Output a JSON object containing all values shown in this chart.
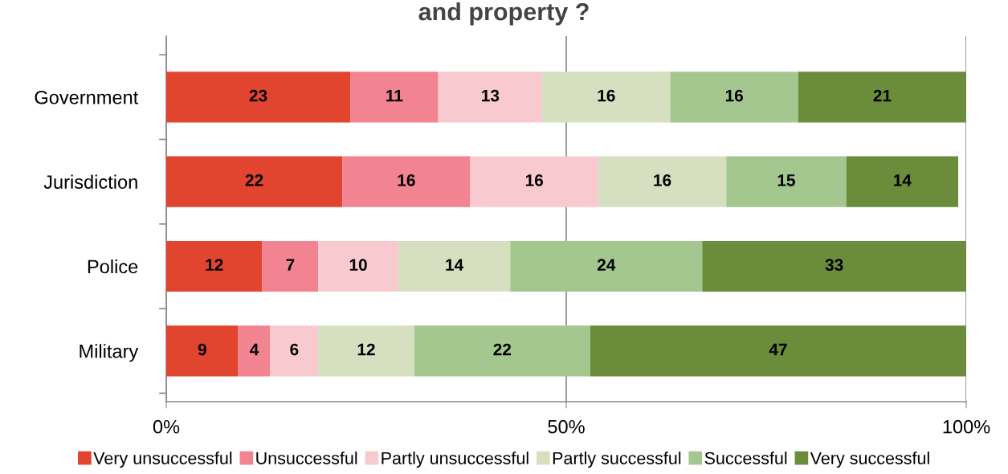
{
  "chart_data": {
    "type": "bar",
    "title": "and property ?",
    "orientation": "horizontal",
    "stacked": true,
    "data_labels": true,
    "categories": [
      "Government",
      "Jurisdiction",
      "Police",
      "Military"
    ],
    "series": [
      {
        "name": "Very unsuccessful",
        "color": "#e2452f",
        "values": [
          23,
          22,
          12,
          9
        ]
      },
      {
        "name": "Unsuccessful",
        "color": "#f28390",
        "values": [
          11,
          16,
          7,
          4
        ]
      },
      {
        "name": "Partly unsuccessful",
        "color": "#f9c9d0",
        "values": [
          13,
          16,
          10,
          6
        ]
      },
      {
        "name": "Partly successful",
        "color": "#d6dfc0",
        "values": [
          16,
          16,
          14,
          12
        ]
      },
      {
        "name": "Successful",
        "color": "#a3c78e",
        "values": [
          16,
          15,
          24,
          22
        ]
      },
      {
        "name": "Very successful",
        "color": "#6b8c3a",
        "values": [
          21,
          14,
          33,
          47
        ]
      }
    ],
    "xlim": [
      0,
      100
    ],
    "xticks": [
      {
        "value": 0,
        "label": "0%"
      },
      {
        "value": 50,
        "label": "50%"
      },
      {
        "value": 100,
        "label": "100%"
      }
    ],
    "grid": "x",
    "legend": "bottom",
    "marker": "square"
  }
}
